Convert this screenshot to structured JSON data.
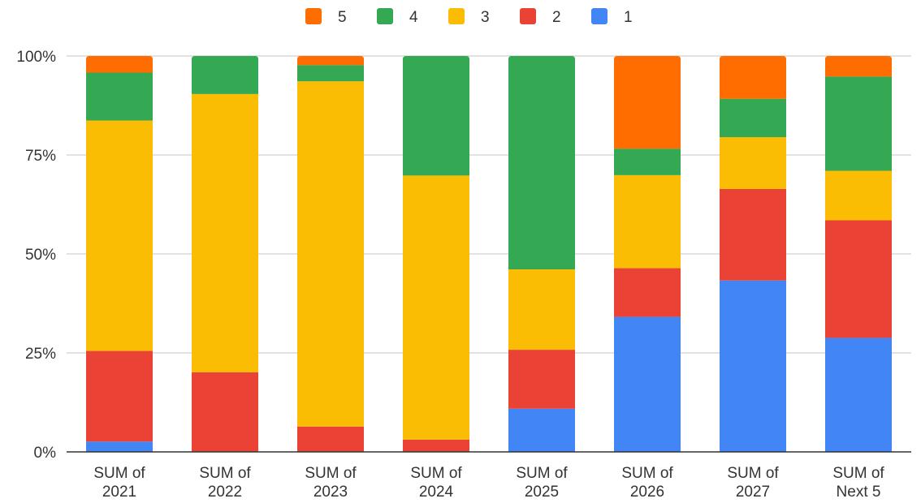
{
  "chart_data": {
    "type": "bar",
    "stacked": true,
    "normalized": true,
    "title": "",
    "xlabel": "",
    "ylabel": "",
    "ylim": [
      0,
      100
    ],
    "yticks": [
      "0%",
      "25%",
      "50%",
      "75%",
      "100%"
    ],
    "grid": true,
    "legend_position": "top",
    "categories": [
      [
        "SUM of",
        "2021"
      ],
      [
        "SUM of",
        "2022"
      ],
      [
        "SUM of",
        "2023"
      ],
      [
        "SUM of",
        "2024"
      ],
      [
        "SUM of",
        "2025"
      ],
      [
        "SUM of",
        "2026"
      ],
      [
        "SUM of",
        "2027"
      ],
      [
        "SUM of",
        "Next 5"
      ]
    ],
    "series": [
      {
        "name": "1",
        "color": "#4285F4",
        "values": [
          2.6,
          0,
          0,
          0,
          10.9,
          34.1,
          43.3,
          28.8
        ]
      },
      {
        "name": "2",
        "color": "#EA4335",
        "values": [
          22.9,
          20.1,
          6.4,
          3.1,
          14.9,
          12.3,
          23.1,
          29.7
        ]
      },
      {
        "name": "3",
        "color": "#FBBC04",
        "values": [
          58.2,
          70.3,
          87.2,
          66.7,
          20.3,
          23.5,
          13.1,
          12.5
        ]
      },
      {
        "name": "4",
        "color": "#34A853",
        "values": [
          12.1,
          9.6,
          4.1,
          30.2,
          53.9,
          6.7,
          9.7,
          23.8
        ]
      },
      {
        "name": "5",
        "color": "#FF6D01",
        "values": [
          4.2,
          0,
          2.3,
          0,
          0,
          23.4,
          10.8,
          5.2
        ]
      }
    ],
    "legend_order": [
      "5",
      "4",
      "3",
      "2",
      "1"
    ]
  }
}
